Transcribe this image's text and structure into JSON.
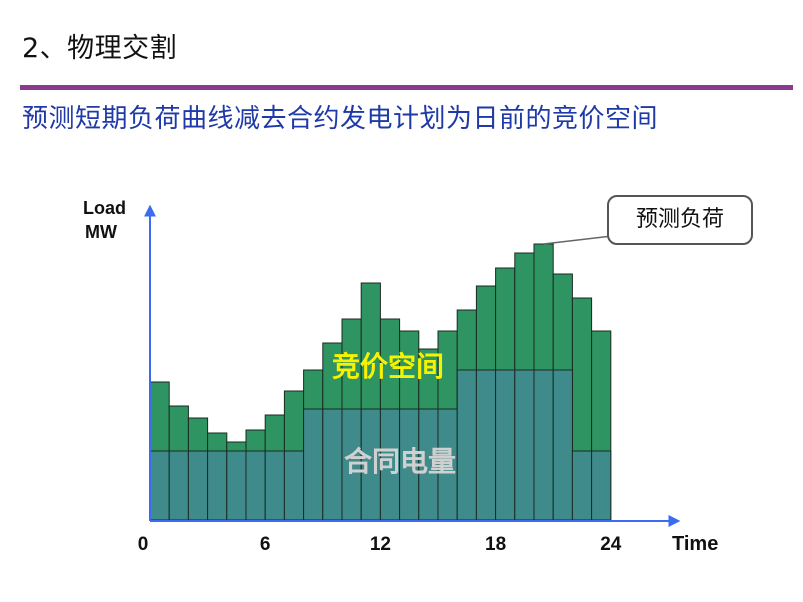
{
  "slide": {
    "section_title": "2、物理交割",
    "subtitle": "预测短期负荷曲线减去合约发电计划为日前的竞价空间"
  },
  "colors": {
    "rule": "#8a3b8f",
    "subtitle": "#1f3aa8",
    "forecast_fill": "#2e9461",
    "contract_fill": "#3f8b8c",
    "bar_border": "#1a2a22",
    "axis": "#3b6cf0",
    "bidding_label": "#f7f200",
    "contract_label": "#d0d0d0"
  },
  "chart_data": {
    "type": "bar",
    "ylabel_line1": "Load",
    "ylabel_line2": "MW",
    "xlabel": "Time",
    "x_ticks": [
      0,
      6,
      12,
      18,
      24
    ],
    "xlim": [
      0,
      24
    ],
    "series": [
      {
        "name": "预测负荷",
        "values": [
          46,
          38,
          34,
          29,
          26,
          30,
          35,
          43,
          50,
          59,
          67,
          79,
          67,
          63,
          57,
          63,
          70,
          78,
          84,
          89,
          92,
          82,
          74,
          63
        ]
      },
      {
        "name": "合同电量",
        "values": [
          23,
          23,
          23,
          23,
          23,
          23,
          23,
          23,
          37,
          37,
          37,
          37,
          37,
          37,
          37,
          37,
          50,
          50,
          50,
          50,
          50,
          50,
          23,
          23
        ]
      }
    ],
    "annotations": {
      "callout": "预测负荷",
      "bidding_space": "竞价空间",
      "contract": "合同电量"
    }
  }
}
